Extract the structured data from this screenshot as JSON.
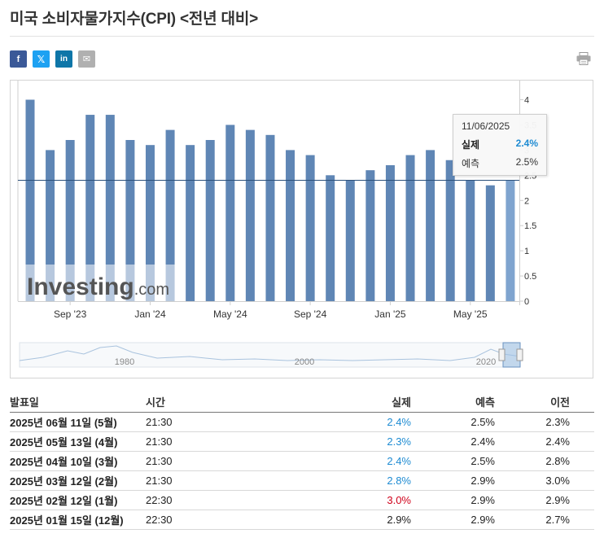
{
  "page": {
    "title": "미국 소비자물가지수(CPI) <전년 대비>"
  },
  "share": {
    "facebook": "f",
    "twitter": "𝕏",
    "linkedin": "in",
    "email": "✉",
    "icons": [
      "facebook-icon",
      "twitter-icon",
      "linkedin-icon",
      "email-icon",
      "print-icon"
    ]
  },
  "colors": {
    "bar": "#5f86b5",
    "bar_highlight": "#7fa4cf",
    "actual_up": "#1e8bd2",
    "actual_down": "#d0021b",
    "watermark": "#555555"
  },
  "chart_data": {
    "type": "bar",
    "title": "",
    "xlabel": "",
    "ylabel": "",
    "ylim": [
      0,
      4.2
    ],
    "y_ticks": [
      "0",
      "0.5",
      "1",
      "1.5",
      "2",
      "2.5",
      "3",
      "3.5",
      "4"
    ],
    "x_tick_labels": [
      {
        "label": "Sep '23",
        "index": 2
      },
      {
        "label": "Jan '24",
        "index": 6
      },
      {
        "label": "May '24",
        "index": 10
      },
      {
        "label": "Sep '24",
        "index": 14
      },
      {
        "label": "Jan '25",
        "index": 18
      },
      {
        "label": "May '25",
        "index": 22
      }
    ],
    "values": [
      4.0,
      3.0,
      3.2,
      3.7,
      3.7,
      3.2,
      3.1,
      3.4,
      3.1,
      3.2,
      3.5,
      3.4,
      3.3,
      3.0,
      2.9,
      2.5,
      2.4,
      2.6,
      2.7,
      2.9,
      3.0,
      2.8,
      2.4,
      2.3,
      2.4
    ],
    "highlight_index": 24,
    "reference_line": 2.4,
    "watermark": "Investing.com",
    "navigator_labels": [
      "1980",
      "2000",
      "2020"
    ],
    "tooltip": {
      "date": "11/06/2025",
      "actual_label": "실제",
      "actual_value": "2.4%",
      "forecast_label": "예측",
      "forecast_value": "2.5%"
    }
  },
  "table": {
    "headers": {
      "date": "발표일",
      "time": "시간",
      "actual": "실제",
      "forecast": "예측",
      "previous": "이전"
    },
    "rows": [
      {
        "date": "2025년 06월 11일 (5월)",
        "time": "21:30",
        "actual": "2.4%",
        "forecast": "2.5%",
        "previous": "2.3%",
        "actual_color": "blue"
      },
      {
        "date": "2025년 05월 13일 (4월)",
        "time": "21:30",
        "actual": "2.3%",
        "forecast": "2.4%",
        "previous": "2.4%",
        "actual_color": "blue"
      },
      {
        "date": "2025년 04월 10일 (3월)",
        "time": "21:30",
        "actual": "2.4%",
        "forecast": "2.5%",
        "previous": "2.8%",
        "actual_color": "blue"
      },
      {
        "date": "2025년 03월 12일 (2월)",
        "time": "21:30",
        "actual": "2.8%",
        "forecast": "2.9%",
        "previous": "3.0%",
        "actual_color": "blue"
      },
      {
        "date": "2025년 02월 12일 (1월)",
        "time": "22:30",
        "actual": "3.0%",
        "forecast": "2.9%",
        "previous": "2.9%",
        "actual_color": "red"
      },
      {
        "date": "2025년 01월 15일 (12월)",
        "time": "22:30",
        "actual": "2.9%",
        "forecast": "2.9%",
        "previous": "2.7%",
        "actual_color": "black"
      }
    ]
  }
}
